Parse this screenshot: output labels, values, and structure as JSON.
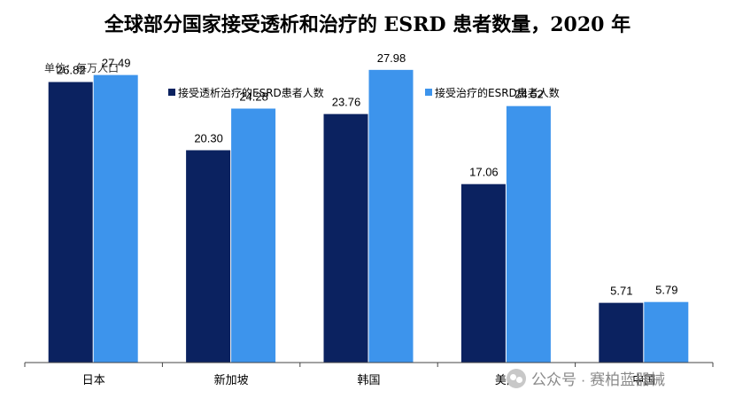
{
  "chart_data": {
    "type": "bar",
    "title": "全球部分国家接受透析和治疗的 ESRD 患者数量，2020 年",
    "unit_label": "单位：每万人口",
    "categories": [
      "日本",
      "新加坡",
      "韩国",
      "美国",
      "中国"
    ],
    "series": [
      {
        "name": "接受透析治疗的ESRD患者人数",
        "values": [
          26.82,
          20.3,
          23.76,
          17.06,
          5.71
        ],
        "color": "#0b2260"
      },
      {
        "name": "接受治疗的ESRD患者人数",
        "values": [
          27.49,
          24.28,
          27.98,
          24.52,
          5.79
        ],
        "color": "#3d94ec"
      }
    ],
    "value_labels": [
      [
        "26.82",
        "20.30",
        "23.76",
        "17.06",
        "5.71"
      ],
      [
        "27.49",
        "24.28",
        "27.98",
        "24.52",
        "5.79"
      ]
    ],
    "ylim": [
      0,
      30
    ],
    "grid": false,
    "legend_position": "top"
  },
  "watermark": {
    "text": "公众号 · 赛柏蓝器械",
    "icon": "wechat-icon"
  }
}
